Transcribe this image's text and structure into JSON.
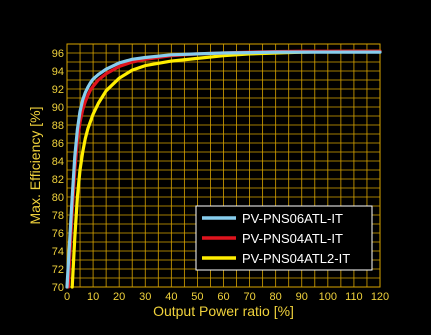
{
  "chart_data": {
    "type": "line",
    "xlabel": "Output Power ratio [%]",
    "ylabel": "Max. Efficiency [%]",
    "xlim": [
      0,
      120
    ],
    "ylim": [
      70,
      97
    ],
    "x_ticks": [
      0,
      10,
      20,
      30,
      40,
      50,
      60,
      70,
      80,
      90,
      100,
      110,
      120
    ],
    "y_ticks": [
      70,
      72,
      74,
      76,
      78,
      80,
      82,
      84,
      86,
      88,
      90,
      92,
      94,
      96
    ],
    "x_tick_labels": [
      "0",
      "10",
      "20",
      "30",
      "40",
      "50",
      "60",
      "70",
      "80",
      "90",
      "100",
      "110",
      "120"
    ],
    "y_tick_labels": [
      "70",
      "72",
      "74",
      "76",
      "78",
      "80",
      "82",
      "84",
      "86",
      "88",
      "90",
      "92",
      "94",
      "96"
    ],
    "grid": true,
    "legend_position": "bottom-right",
    "series": [
      {
        "name": "PV-PNS06ATL-IT",
        "color": "#87cdee",
        "x": [
          0,
          1,
          2,
          3,
          4,
          5,
          6,
          7,
          8,
          9,
          10,
          12,
          15,
          20,
          25,
          30,
          40,
          50,
          60,
          70,
          80,
          90,
          100,
          110,
          120
        ],
        "y": [
          70,
          75,
          80,
          84.5,
          87.5,
          89.5,
          90.8,
          91.6,
          92.2,
          92.7,
          93.1,
          93.6,
          94.2,
          94.9,
          95.3,
          95.5,
          95.8,
          95.9,
          96.0,
          96.05,
          96.1,
          96.1,
          96.1,
          96.1,
          96.1
        ]
      },
      {
        "name": "PV-PNS04ATL-IT",
        "color": "#e0141e",
        "x": [
          0.5,
          1,
          2,
          3,
          4,
          5,
          6,
          7,
          8,
          9,
          10,
          12,
          15,
          20,
          25,
          30,
          40,
          50,
          60,
          70,
          80,
          90,
          100,
          110,
          120
        ],
        "y": [
          70,
          73,
          78.5,
          83,
          86.3,
          88.3,
          89.7,
          90.6,
          91.3,
          91.9,
          92.3,
          93.0,
          93.7,
          94.5,
          95.0,
          95.3,
          95.7,
          95.9,
          96.0,
          96.1,
          96.15,
          96.2,
          96.2,
          96.2,
          96.2
        ]
      },
      {
        "name": "PV-PNS04ATL2-IT",
        "color": "#ffee00",
        "x": [
          2,
          3,
          4,
          5,
          6,
          7,
          8,
          10,
          12,
          15,
          20,
          25,
          30,
          40,
          50,
          60,
          70,
          80,
          90,
          100,
          110,
          120
        ],
        "y": [
          70,
          75.5,
          80,
          83,
          85,
          86.5,
          87.6,
          89.2,
          90.4,
          91.8,
          93.2,
          94.1,
          94.6,
          95.1,
          95.4,
          95.7,
          95.9,
          96.0,
          96.1,
          96.15,
          96.2,
          96.2
        ]
      }
    ]
  }
}
